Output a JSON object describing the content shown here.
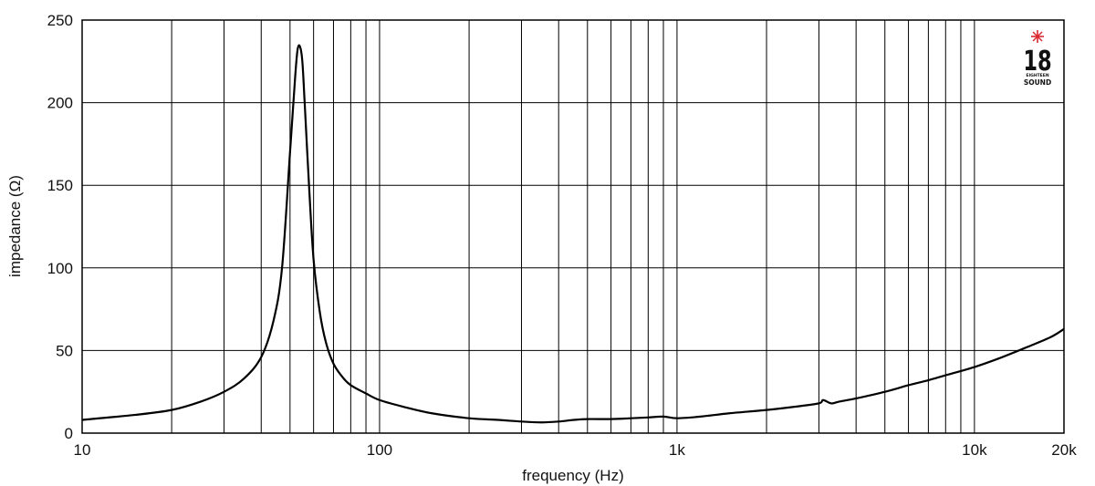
{
  "chart_data": {
    "type": "line",
    "title": "",
    "xlabel": "frequency (Hz)",
    "ylabel": "impedance (Ω)",
    "x_scale": "log",
    "xlim": [
      10,
      20000
    ],
    "ylim": [
      0,
      250
    ],
    "grid": true,
    "x_ticks": [
      {
        "value": 10,
        "label": "10"
      },
      {
        "value": 100,
        "label": "100"
      },
      {
        "value": 1000,
        "label": "1k"
      },
      {
        "value": 10000,
        "label": "10k"
      },
      {
        "value": 20000,
        "label": "20k"
      }
    ],
    "y_ticks": [
      {
        "value": 0,
        "label": "0"
      },
      {
        "value": 50,
        "label": "50"
      },
      {
        "value": 100,
        "label": "100"
      },
      {
        "value": 150,
        "label": "150"
      },
      {
        "value": 200,
        "label": "200"
      },
      {
        "value": 250,
        "label": "250"
      }
    ],
    "series": [
      {
        "color": "#000000",
        "x": [
          10,
          15,
          20,
          25,
          30,
          35,
          40,
          44,
          47,
          50,
          52,
          53,
          54,
          55,
          56,
          58,
          60,
          63,
          66,
          70,
          75,
          80,
          90,
          100,
          120,
          150,
          200,
          250,
          300,
          350,
          400,
          450,
          500,
          600,
          700,
          800,
          900,
          1000,
          1200,
          1500,
          2000,
          2500,
          3000,
          3100,
          3300,
          3500,
          4000,
          5000,
          6000,
          7000,
          8000,
          10000,
          12000,
          15000,
          18000,
          20000
        ],
        "y": [
          8,
          11,
          14,
          19,
          25,
          33,
          46,
          68,
          100,
          170,
          215,
          232,
          234,
          225,
          200,
          148,
          105,
          73,
          55,
          42,
          34,
          29,
          24,
          20,
          16,
          12,
          9,
          8,
          7,
          6.5,
          7,
          8,
          8.5,
          8.5,
          9,
          9.5,
          10,
          9,
          10,
          12,
          14,
          16,
          18,
          20,
          18,
          19,
          21,
          25,
          29,
          32,
          35,
          40,
          45,
          52,
          58,
          63
        ]
      }
    ]
  },
  "logo": {
    "number": "18",
    "line1": "EIGHTEEN",
    "line2": "SOUND",
    "star_color": "#d9282f"
  }
}
